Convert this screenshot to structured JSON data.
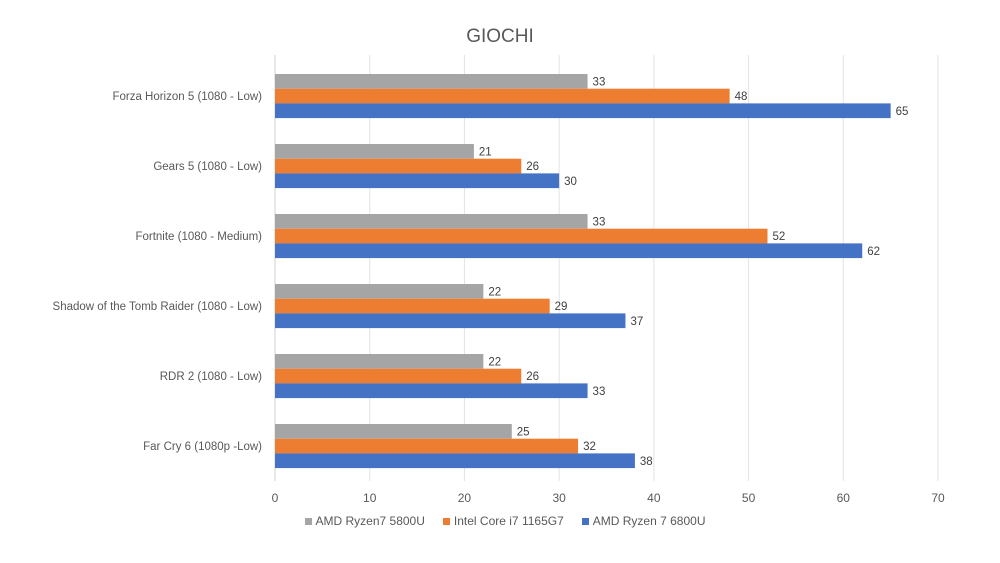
{
  "chart_data": {
    "type": "bar",
    "orientation": "horizontal",
    "title": "GIOCHI",
    "categories": [
      "Forza Horizon 5 (1080 - Low)",
      "Gears 5 (1080 - Low)",
      "Fortnite (1080 - Medium)",
      "Shadow of the Tomb Raider (1080 - Low)",
      "RDR 2 (1080 - Low)",
      "Far Cry 6 (1080p -Low)"
    ],
    "series": [
      {
        "name": "AMD Ryzen7 5800U",
        "color": "#a5a5a5",
        "values": [
          33,
          21,
          33,
          22,
          22,
          25
        ]
      },
      {
        "name": "Intel Core i7 1165G7",
        "color": "#ed7d31",
        "values": [
          48,
          26,
          52,
          29,
          26,
          32
        ]
      },
      {
        "name": "AMD Ryzen 7 6800U",
        "color": "#4472c4",
        "values": [
          65,
          30,
          62,
          37,
          33,
          38
        ]
      }
    ],
    "xlim": [
      0,
      70
    ],
    "xticks": [
      0,
      10,
      20,
      30,
      40,
      50,
      60,
      70
    ],
    "grid": true,
    "legend_position": "bottom",
    "data_labels": true,
    "xlabel": "",
    "ylabel": ""
  }
}
